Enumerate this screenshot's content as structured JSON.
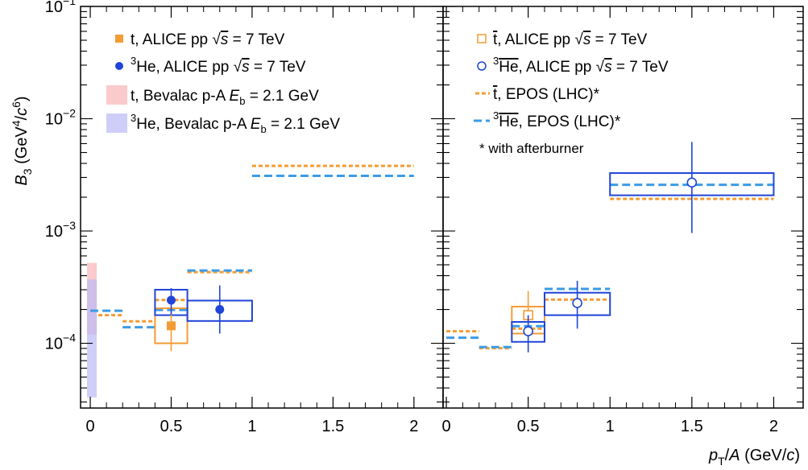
{
  "chart_data": {
    "type": "scatter",
    "ylabel": {
      "main": "B",
      "sub": "3",
      "unit_pre": " (GeV",
      "sup1": "4",
      "slash": "/",
      "c": "c",
      "sup2": "6",
      "close": ")"
    },
    "xlabel": {
      "p": "p",
      "sub": "T",
      "rest": "/",
      "A": "A",
      "unit": " (GeV/",
      "c": "c",
      "close": ")"
    },
    "y_log": true,
    "ylim": [
      2.65e-05,
      0.1
    ],
    "y_ticks": [
      {
        "value": 0.1,
        "mant": "10",
        "exp": "−1"
      },
      {
        "value": 0.01,
        "mant": "10",
        "exp": "−2"
      },
      {
        "value": 0.001,
        "mant": "10",
        "exp": "−3"
      },
      {
        "value": 0.0001,
        "mant": "10",
        "exp": "−4"
      }
    ],
    "colors": {
      "orange": "#f39c34",
      "blue": "#1f45d8",
      "lightblue": "#3c9be6",
      "pink": "#f8b4b6",
      "lavender": "#b9b9f6"
    },
    "panels": [
      {
        "id": "left",
        "xlim": [
          -0.06,
          2.18
        ],
        "x_ticks": [
          0,
          0.5,
          1,
          1.5,
          2
        ],
        "x_tick_labels": [
          "0",
          "0.5",
          "1",
          "1.5",
          "2"
        ],
        "bands": [
          {
            "name": "t, Bevalac p-A",
            "x": [
              -0.02,
              0.04
            ],
            "y": [
              0.00012,
              0.00052
            ],
            "color": "pink"
          },
          {
            "name": "3He, Bevalac p-A",
            "x": [
              -0.02,
              0.04
            ],
            "y": [
              3.3e-05,
              0.00037
            ],
            "color": "lavender"
          }
        ],
        "epos_lines": [
          {
            "x": [
              0.05,
              0.2
            ],
            "y": 0.000178,
            "color": "orange"
          },
          {
            "x": [
              0.2,
              0.4
            ],
            "y": 0.000157,
            "color": "orange"
          },
          {
            "x": [
              0.4,
              0.6
            ],
            "y": 0.000243,
            "color": "orange"
          },
          {
            "x": [
              0.6,
              1.0
            ],
            "y": 0.00043,
            "color": "orange"
          },
          {
            "x": [
              1.0,
              2.0
            ],
            "y": 0.0038,
            "color": "orange"
          },
          {
            "x": [
              0.0,
              0.2
            ],
            "y": 0.000195,
            "color": "lightblue"
          },
          {
            "x": [
              0.2,
              0.4
            ],
            "y": 0.000139,
            "color": "lightblue"
          },
          {
            "x": [
              0.4,
              0.6
            ],
            "y": 0.000198,
            "color": "lightblue"
          },
          {
            "x": [
              0.6,
              1.0
            ],
            "y": 0.000445,
            "color": "lightblue"
          },
          {
            "x": [
              1.0,
              2.0
            ],
            "y": 0.0031,
            "color": "lightblue"
          }
        ],
        "sys_boxes": [
          {
            "x": [
              0.4,
              0.6
            ],
            "y": [
              0.0001,
              0.000205
            ],
            "color": "orange"
          },
          {
            "x": [
              0.4,
              0.6
            ],
            "y": [
              0.000178,
              0.0003
            ],
            "color": "blue"
          },
          {
            "x": [
              0.6,
              1.0
            ],
            "y": [
              0.000158,
              0.00024
            ],
            "color": "blue"
          }
        ],
        "points": [
          {
            "name": "t, ALICE pp",
            "x": 0.5,
            "y": 0.000143,
            "err": [
              8.5e-05,
              0.000205
            ],
            "marker": "filled-square",
            "color": "orange"
          },
          {
            "name": "3He, ALICE pp",
            "x": 0.5,
            "y": 0.000242,
            "err": [
              0.00018,
              0.00031
            ],
            "marker": "filled-circle",
            "color": "blue"
          },
          {
            "name": "3He, ALICE pp",
            "x": 0.8,
            "y": 0.0002,
            "err": [
              0.000122,
              0.000328
            ],
            "marker": "filled-circle",
            "color": "blue"
          }
        ],
        "legend": [
          {
            "kind": "square",
            "color": "orange",
            "pre": "t, ALICE pp ",
            "sqrt": "√",
            "s": "s",
            "post": " = 7 TeV"
          },
          {
            "kind": "circle",
            "color": "blue",
            "sup": "3",
            "pre": "He, ALICE pp ",
            "sqrt": "√",
            "s": "s",
            "post": " = 7 TeV"
          },
          {
            "kind": "band",
            "color": "pink",
            "pre": "t, Bevalac p-A ",
            "E": "E",
            "Esub": "b",
            "post": " = 2.1 GeV"
          },
          {
            "kind": "band",
            "color": "lavender",
            "sup": "3",
            "pre": "He, Bevalac p-A ",
            "E": "E",
            "Esub": "b",
            "post": " = 2.1 GeV"
          }
        ]
      },
      {
        "id": "right",
        "xlim": [
          -0.02,
          2.18
        ],
        "x_ticks": [
          0,
          0.5,
          1,
          1.5,
          2
        ],
        "x_tick_labels": [
          "0",
          "0.5",
          "1",
          "1.5",
          "2"
        ],
        "bands": [],
        "epos_lines": [
          {
            "x": [
              0.0,
              0.2
            ],
            "y": 0.000128,
            "color": "orange"
          },
          {
            "x": [
              0.2,
              0.4
            ],
            "y": 9.05e-05,
            "color": "orange"
          },
          {
            "x": [
              0.4,
              0.6
            ],
            "y": 0.000135,
            "color": "orange"
          },
          {
            "x": [
              0.6,
              1.0
            ],
            "y": 0.000245,
            "color": "orange"
          },
          {
            "x": [
              1.0,
              2.0
            ],
            "y": 0.00193,
            "color": "orange"
          },
          {
            "x": [
              0.0,
              0.2
            ],
            "y": 0.000112,
            "color": "lightblue"
          },
          {
            "x": [
              0.2,
              0.4
            ],
            "y": 9.25e-05,
            "color": "lightblue"
          },
          {
            "x": [
              0.4,
              0.6
            ],
            "y": 0.000142,
            "color": "lightblue"
          },
          {
            "x": [
              0.6,
              1.0
            ],
            "y": 0.000305,
            "color": "lightblue"
          },
          {
            "x": [
              1.0,
              2.0
            ],
            "y": 0.00258,
            "color": "lightblue"
          }
        ],
        "sys_boxes": [
          {
            "x": [
              0.4,
              0.6
            ],
            "y": [
              0.000122,
              0.000212
            ],
            "color": "orange"
          },
          {
            "x": [
              0.4,
              0.6
            ],
            "y": [
              0.000103,
              0.000155
            ],
            "color": "blue"
          },
          {
            "x": [
              0.6,
              1.0
            ],
            "y": [
              0.000178,
              0.000282
            ],
            "color": "blue"
          },
          {
            "x": [
              1.0,
              2.0
            ],
            "y": [
              0.00208,
              0.00328
            ],
            "color": "blue"
          }
        ],
        "points": [
          {
            "name": "anti-t, ALICE pp",
            "x": 0.5,
            "y": 0.000178,
            "err": [
              0.000118,
              0.000292
            ],
            "marker": "open-square",
            "color": "orange"
          },
          {
            "name": "anti-3He, ALICE pp",
            "x": 0.5,
            "y": 0.000128,
            "err": [
              8.3e-05,
              0.000178
            ],
            "marker": "open-circle",
            "color": "blue"
          },
          {
            "name": "anti-3He, ALICE pp",
            "x": 0.8,
            "y": 0.000228,
            "err": [
              0.000135,
              0.00036
            ],
            "marker": "open-circle",
            "color": "blue"
          },
          {
            "name": "anti-3He, ALICE pp",
            "x": 1.5,
            "y": 0.0027,
            "err": [
              0.00096,
              0.0062
            ],
            "marker": "open-circle",
            "color": "blue"
          }
        ],
        "legend": [
          {
            "kind": "open-square",
            "color": "orange",
            "bar": "t",
            "pre": ", ALICE pp ",
            "sqrt": "√",
            "s": "s",
            "post": " = 7 TeV"
          },
          {
            "kind": "open-circle",
            "color": "blue",
            "sup": "3",
            "bar": "He",
            "pre": ", ALICE pp ",
            "sqrt": "√",
            "s": "s",
            "post": " = 7 TeV"
          },
          {
            "kind": "dash-orange",
            "color": "orange",
            "bar": "t",
            "pre": ", EPOS (LHC)*"
          },
          {
            "kind": "dash-blue",
            "color": "lightblue",
            "sup": "3",
            "bar": "He",
            "pre": ", EPOS (LHC)*"
          },
          {
            "kind": "note",
            "pre": "* with afterburner"
          }
        ]
      }
    ]
  }
}
